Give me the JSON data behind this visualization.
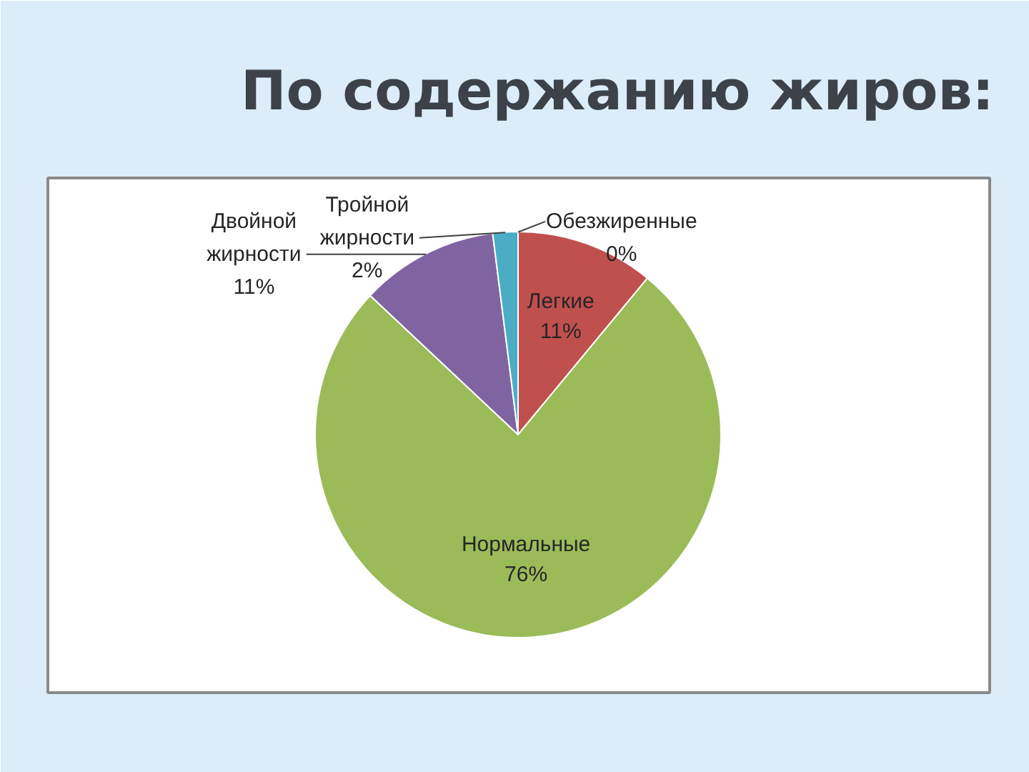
{
  "chart_data": {
    "type": "pie",
    "title": "По содержанию жиров:",
    "categories": [
      "Обезжиренные",
      "Легкие",
      "Нормальные",
      "Двойной жирности",
      "Тройной жирности"
    ],
    "values": [
      0,
      11,
      76,
      11,
      2
    ],
    "colors": [
      null,
      "#c0504d",
      "#9bbb59",
      "#8064a2",
      "#4bacc6"
    ],
    "value_labels": [
      "0%",
      "11%",
      "76%",
      "11%",
      "2%"
    ]
  }
}
